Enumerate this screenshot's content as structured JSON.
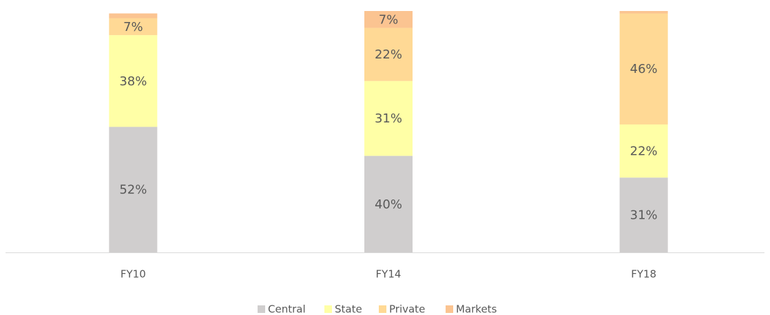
{
  "chart_data": {
    "type": "stacked_bar",
    "categories": [
      "FY10",
      "FY14",
      "FY18"
    ],
    "series": [
      {
        "name": "Central",
        "color": "#d0cece",
        "values": [
          52,
          40,
          31
        ],
        "value_labels": [
          "52%",
          "40%",
          "31%"
        ]
      },
      {
        "name": "State",
        "color": "#ffffa6",
        "values": [
          38,
          31,
          22
        ],
        "value_labels": [
          "38%",
          "31%",
          "22%"
        ]
      },
      {
        "name": "Private",
        "color": "#ffd995",
        "values": [
          7,
          22,
          46
        ],
        "value_labels": [
          "7%",
          "22%",
          "46%"
        ]
      },
      {
        "name": "Markets",
        "color": "#fbc491",
        "values": [
          2,
          7,
          1
        ],
        "value_labels": [
          null,
          "7%",
          null
        ]
      }
    ],
    "ylim": [
      0,
      100
    ],
    "legend": "bottom"
  }
}
